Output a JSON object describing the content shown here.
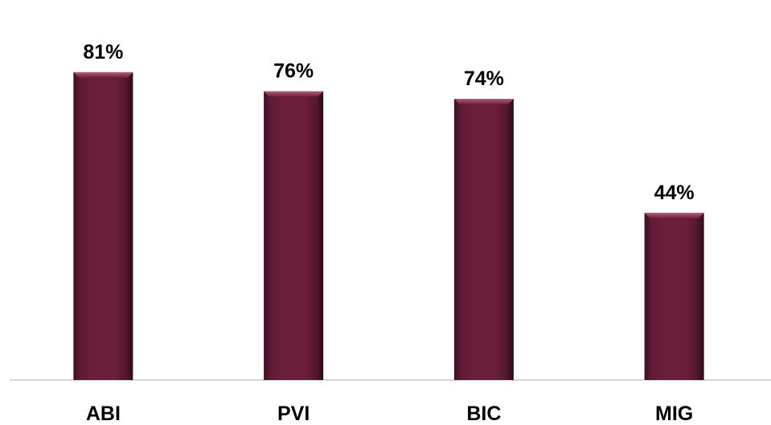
{
  "chart_data": {
    "type": "bar",
    "categories": [
      "ABI",
      "PVI",
      "BIC",
      "MIG"
    ],
    "values": [
      81,
      76,
      74,
      44
    ],
    "value_suffix": "%",
    "data_labels": [
      "81%",
      "76%",
      "74%",
      "44%"
    ],
    "ylim": [
      0,
      100
    ],
    "grid": false,
    "legend": "none",
    "colors": {
      "bar": "#6b1e3c",
      "bar_highlight": "#9a4a66",
      "bar_shadow": "#3a0d1f",
      "axis": "#c8c8c8"
    }
  }
}
